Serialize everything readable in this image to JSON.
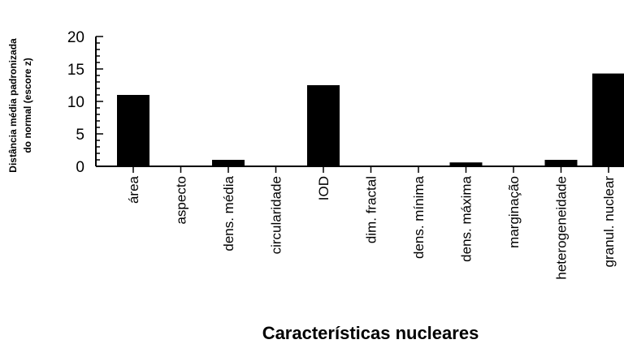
{
  "chart_data": {
    "type": "bar",
    "categories": [
      "área",
      "aspecto",
      "dens. média",
      "circularidade",
      "IOD",
      "dim. fractal",
      "dens. mínima",
      "dens. máxima",
      "marginação",
      "heterogeneidade",
      "granul. nuclear"
    ],
    "values": [
      11,
      0,
      1,
      0,
      12.5,
      0,
      0,
      0.6,
      0,
      1,
      14.3
    ],
    "title": "",
    "xlabel": "Características nucleares",
    "ylabel_line1": "Distância média padronizada",
    "ylabel_line2": "do normal (escore z)",
    "ylim": [
      0,
      20
    ],
    "yticks": [
      "0",
      "5",
      "10",
      "15",
      "20"
    ],
    "grid": false,
    "bar_color": "#000000"
  }
}
